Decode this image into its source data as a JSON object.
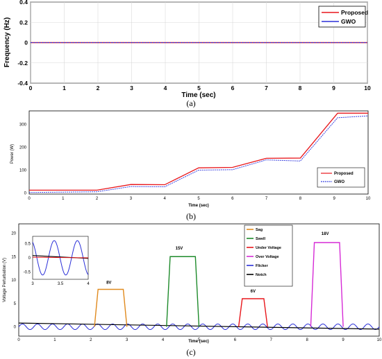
{
  "charts": [
    {
      "type": "line",
      "caption": "(a)",
      "xlabel": "Time (sec)",
      "ylabel": "Frequency (Hz)",
      "xlim": [
        0,
        10
      ],
      "ylim": [
        -0.4,
        0.4
      ],
      "xticks": [
        0,
        1,
        2,
        3,
        4,
        5,
        6,
        7,
        8,
        9,
        10
      ],
      "yticks": [
        -0.4,
        -0.2,
        0,
        0.2,
        0.4
      ],
      "ytick_labels": [
        "-0.4",
        "-0.2",
        "0",
        "0.2",
        "0.4"
      ],
      "grid": true,
      "legend_position": "top-right",
      "series": [
        {
          "name": "Proposed",
          "color": "#e8161b",
          "x": [
            0,
            10
          ],
          "y": [
            0,
            0
          ]
        },
        {
          "name": "GWO",
          "color": "#2a2fd8",
          "x": [
            0,
            10
          ],
          "y": [
            0,
            0
          ]
        }
      ]
    },
    {
      "type": "line",
      "caption": "(b)",
      "xlabel": "Time (sec)",
      "ylabel": "Power (W)",
      "xlim": [
        0,
        10
      ],
      "ylim": [
        -5,
        360
      ],
      "xticks": [
        0,
        1,
        2,
        3,
        4,
        5,
        6,
        7,
        8,
        9,
        10
      ],
      "yticks": [
        0,
        100,
        200,
        300
      ],
      "ytick_labels": [
        "0",
        "100",
        "200",
        "300"
      ],
      "grid": false,
      "legend_position": "bottom-right",
      "series": [
        {
          "name": "Proposed",
          "color": "#e8161b",
          "x": [
            0,
            2,
            3,
            4,
            5,
            6,
            7,
            8,
            9.1,
            10
          ],
          "y": [
            12,
            12,
            37,
            36,
            110,
            112,
            152,
            153,
            350,
            350
          ]
        },
        {
          "name": "GWO",
          "color": "#3b43e0",
          "x": [
            0,
            2,
            3,
            4,
            5,
            6,
            7,
            8,
            9.1,
            10
          ],
          "y": [
            2,
            5,
            28,
            27,
            100,
            102,
            145,
            140,
            330,
            338
          ]
        }
      ]
    },
    {
      "type": "line",
      "caption": "(c)",
      "xlabel": "Time (sec)",
      "ylabel": "Voltage Perturbation (V)",
      "xlim": [
        0,
        10
      ],
      "ylim": [
        -2,
        22
      ],
      "xticks": [
        0,
        1,
        2,
        3,
        4,
        5,
        6,
        7,
        8,
        9,
        10
      ],
      "yticks": [
        0,
        5,
        10,
        15,
        20
      ],
      "ytick_labels": [
        "0",
        "5",
        "10",
        "15",
        "20"
      ],
      "grid": false,
      "legend_position": "top-center",
      "series": [
        {
          "name": "Sag",
          "color": "#e08a1e",
          "x": [
            2.1,
            2.2,
            2.9,
            3.0
          ],
          "y": [
            0,
            8,
            8,
            0
          ]
        },
        {
          "name": "Swell",
          "color": "#1d8a2a",
          "x": [
            4.1,
            4.2,
            4.9,
            5.0
          ],
          "y": [
            0,
            15,
            15,
            0
          ]
        },
        {
          "name": "Under Voltage",
          "color": "#e8161b",
          "x": [
            6.1,
            6.2,
            6.8,
            6.9
          ],
          "y": [
            0,
            6,
            6,
            0
          ]
        },
        {
          "name": "Over Voltage",
          "color": "#d62ad6",
          "x": [
            8.1,
            8.2,
            8.9,
            9.0
          ],
          "y": [
            0,
            18,
            18,
            0
          ]
        },
        {
          "name": "Flicker",
          "color": "#2a2fd8"
        },
        {
          "name": "Notch",
          "color": "#000000",
          "x": [
            0,
            10
          ],
          "y": [
            0.8,
            -0.5
          ]
        }
      ],
      "annotations": [
        {
          "text": "8V",
          "x": 2.5,
          "y": 9.2
        },
        {
          "text": "15V",
          "x": 4.45,
          "y": 16.5
        },
        {
          "text": "6V",
          "x": 6.5,
          "y": 7.3
        },
        {
          "text": "18V",
          "x": 8.5,
          "y": 19.6
        }
      ],
      "inset": {
        "xlim": [
          3,
          4
        ],
        "ylim": [
          -0.75,
          0.75
        ],
        "xticks": [
          3,
          3.5,
          4
        ],
        "xtick_labels": [
          "3",
          "3.5",
          "4"
        ],
        "yticks": [
          -0.5,
          0,
          0.5
        ],
        "ytick_labels": [
          "-0.5",
          "0",
          "0.5"
        ]
      }
    }
  ]
}
